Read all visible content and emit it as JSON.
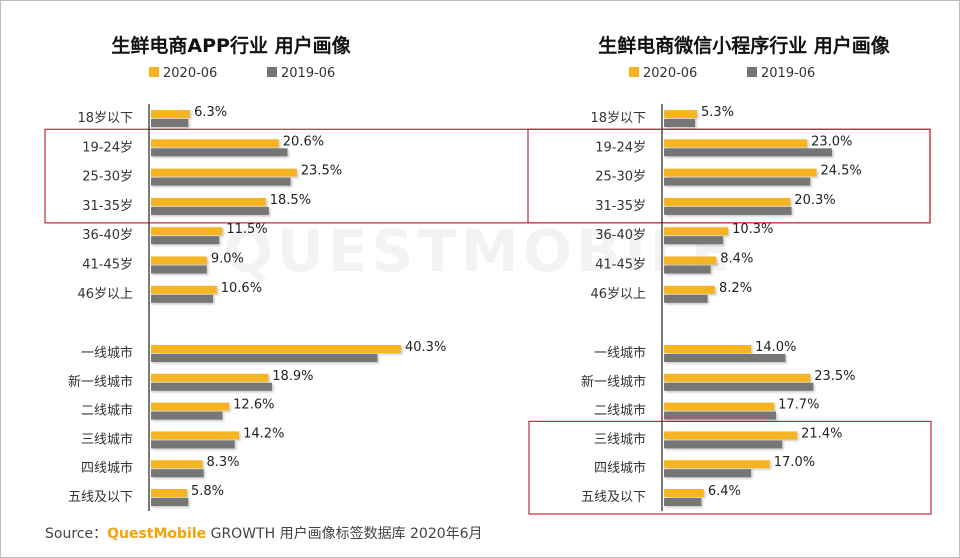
{
  "colors": {
    "series_2020": "#f5b523",
    "series_2019": "#767676",
    "highlight": "#c0283c",
    "axis": "#333333"
  },
  "watermark": {
    "text": "QUESTMOBILE"
  },
  "chart_data": [
    {
      "type": "bar",
      "orientation": "horizontal",
      "title": "生鲜电商APP行业 用户画像",
      "legend": [
        "2020-06",
        "2019-06"
      ],
      "groups": [
        {
          "name": "age",
          "categories": [
            "18岁以下",
            "19-24岁",
            "25-30岁",
            "31-35岁",
            "36-40岁",
            "41-45岁",
            "46岁以上"
          ]
        },
        {
          "name": "city",
          "categories": [
            "一线城市",
            "新一线城市",
            "二线城市",
            "三线城市",
            "四线城市",
            "五线及以下"
          ]
        }
      ],
      "categories": [
        "18岁以下",
        "19-24岁",
        "25-30岁",
        "31-35岁",
        "36-40岁",
        "41-45岁",
        "46岁以上",
        "一线城市",
        "新一线城市",
        "二线城市",
        "三线城市",
        "四线城市",
        "五线及以下"
      ],
      "series": [
        {
          "name": "2020-06",
          "values": [
            6.3,
            20.6,
            23.5,
            18.5,
            11.5,
            9.0,
            10.6,
            40.3,
            18.9,
            12.6,
            14.2,
            8.3,
            5.8
          ]
        },
        {
          "name": "2019-06",
          "values": [
            6.0,
            22.0,
            22.5,
            19.0,
            11.0,
            9.0,
            10.0,
            36.5,
            19.5,
            11.5,
            13.5,
            8.5,
            6.0
          ]
        }
      ],
      "labels": [
        "6.3%",
        "20.6%",
        "23.5%",
        "18.5%",
        "11.5%",
        "9.0%",
        "10.6%",
        "40.3%",
        "18.9%",
        "12.6%",
        "14.2%",
        "8.3%",
        "5.8%"
      ],
      "unit": "%",
      "highlighted": [
        "19-24岁",
        "25-30岁",
        "31-35岁"
      ],
      "xlim": [
        0,
        40.3
      ],
      "grid": false
    },
    {
      "type": "bar",
      "orientation": "horizontal",
      "title": "生鲜电商微信小程序行业 用户画像",
      "legend": [
        "2020-06",
        "2019-06"
      ],
      "groups": [
        {
          "name": "age",
          "categories": [
            "18岁以下",
            "19-24岁",
            "25-30岁",
            "31-35岁",
            "36-40岁",
            "41-45岁",
            "46岁以上"
          ]
        },
        {
          "name": "city",
          "categories": [
            "一线城市",
            "新一线城市",
            "二线城市",
            "三线城市",
            "四线城市",
            "五线及以下"
          ]
        }
      ],
      "categories": [
        "18岁以下",
        "19-24岁",
        "25-30岁",
        "31-35岁",
        "36-40岁",
        "41-45岁",
        "46岁以上",
        "一线城市",
        "新一线城市",
        "二线城市",
        "三线城市",
        "四线城市",
        "五线及以下"
      ],
      "series": [
        {
          "name": "2020-06",
          "values": [
            5.3,
            23.0,
            24.5,
            20.3,
            10.3,
            8.4,
            8.2,
            14.0,
            23.5,
            17.7,
            21.4,
            17.0,
            6.4
          ]
        },
        {
          "name": "2019-06",
          "values": [
            5.0,
            27.0,
            23.5,
            20.5,
            9.5,
            7.5,
            7.0,
            19.5,
            24.0,
            18.0,
            19.0,
            14.0,
            6.0
          ]
        }
      ],
      "labels": [
        "5.3%",
        "23.0%",
        "24.5%",
        "20.3%",
        "10.3%",
        "8.4%",
        "8.2%",
        "14.0%",
        "23.5%",
        "17.7%",
        "21.4%",
        "17.0%",
        "6.4%"
      ],
      "unit": "%",
      "highlighted": [
        "19-24岁",
        "25-30岁",
        "31-35岁",
        "三线城市",
        "四线城市",
        "五线及以下"
      ],
      "xlim": [
        0,
        27.0
      ],
      "grid": false
    }
  ],
  "source": {
    "prefix": "Source：",
    "brand": "QuestMobile",
    "text": " GROWTH 用户画像标签数据库 2020年6月"
  }
}
